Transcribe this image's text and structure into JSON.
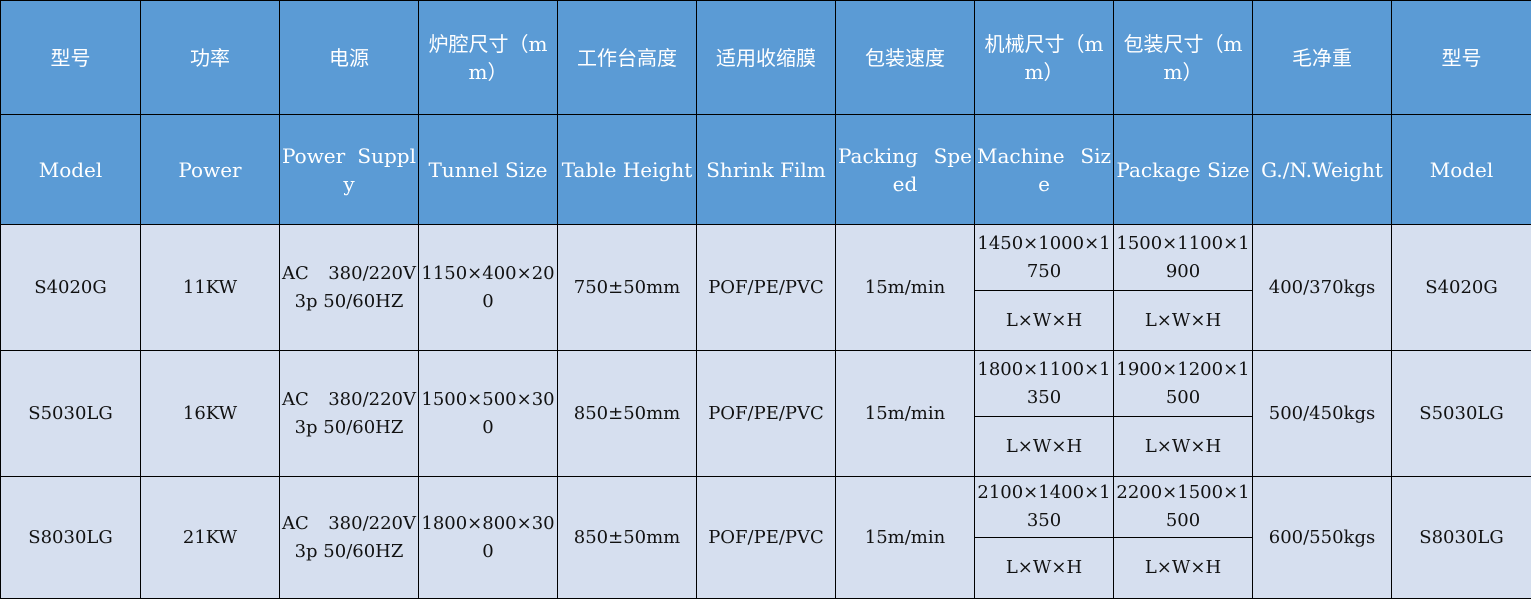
{
  "colors": {
    "header_bg": "#5B9BD5",
    "body_bg": "#D6DFEF",
    "border": "#000000"
  },
  "header_cn": [
    "型号",
    "功率",
    "电源",
    "炉腔尺寸（mm）",
    "工作台高度",
    "适用收缩膜",
    "包装速度",
    "机械尺寸（mm）",
    "包装尺寸（mm）",
    "毛净重",
    "型号"
  ],
  "header_en": [
    "Model",
    "Power",
    "Power Supply",
    "Tunnel Size",
    "Table Height",
    "Shrink Film",
    "Packing Speed",
    "Machine Size",
    "Package Size",
    "G./N.Weight",
    "Model"
  ],
  "rows": [
    {
      "model": "S4020G",
      "power": "11KW",
      "supply": "AC 380/220V 3p 50/60HZ",
      "tunnel": "1150×400×200",
      "table": "750±50mm",
      "film": "POF/PE/PVC",
      "speed": "15m/min",
      "machine": "1450×1000×1750",
      "package": "1500×1100×1900",
      "machine_unit": "L×W×H",
      "package_unit": "L×W×H",
      "weight": "400/370kgs",
      "model2": "S4020G"
    },
    {
      "model": "S5030LG",
      "power": "16KW",
      "supply": "AC 380/220V 3p 50/60HZ",
      "tunnel": "1500×500×300",
      "table": "850±50mm",
      "film": "POF/PE/PVC",
      "speed": "15m/min",
      "machine": "1800×1100×1350",
      "package": "1900×1200×1500",
      "machine_unit": "L×W×H",
      "package_unit": "L×W×H",
      "weight": "500/450kgs",
      "model2": "S5030LG"
    },
    {
      "model": "S8030LG",
      "power": "21KW",
      "supply": "AC 380/220V 3p 50/60HZ",
      "tunnel": "1800×800×300",
      "table": "850±50mm",
      "film": "POF/PE/PVC",
      "speed": "15m/min",
      "machine": "2100×1400×1350",
      "package": "2200×1500×1500",
      "machine_unit": "L×W×H",
      "package_unit": "L×W×H",
      "weight": "600/550kgs",
      "model2": "S8030LG"
    }
  ]
}
